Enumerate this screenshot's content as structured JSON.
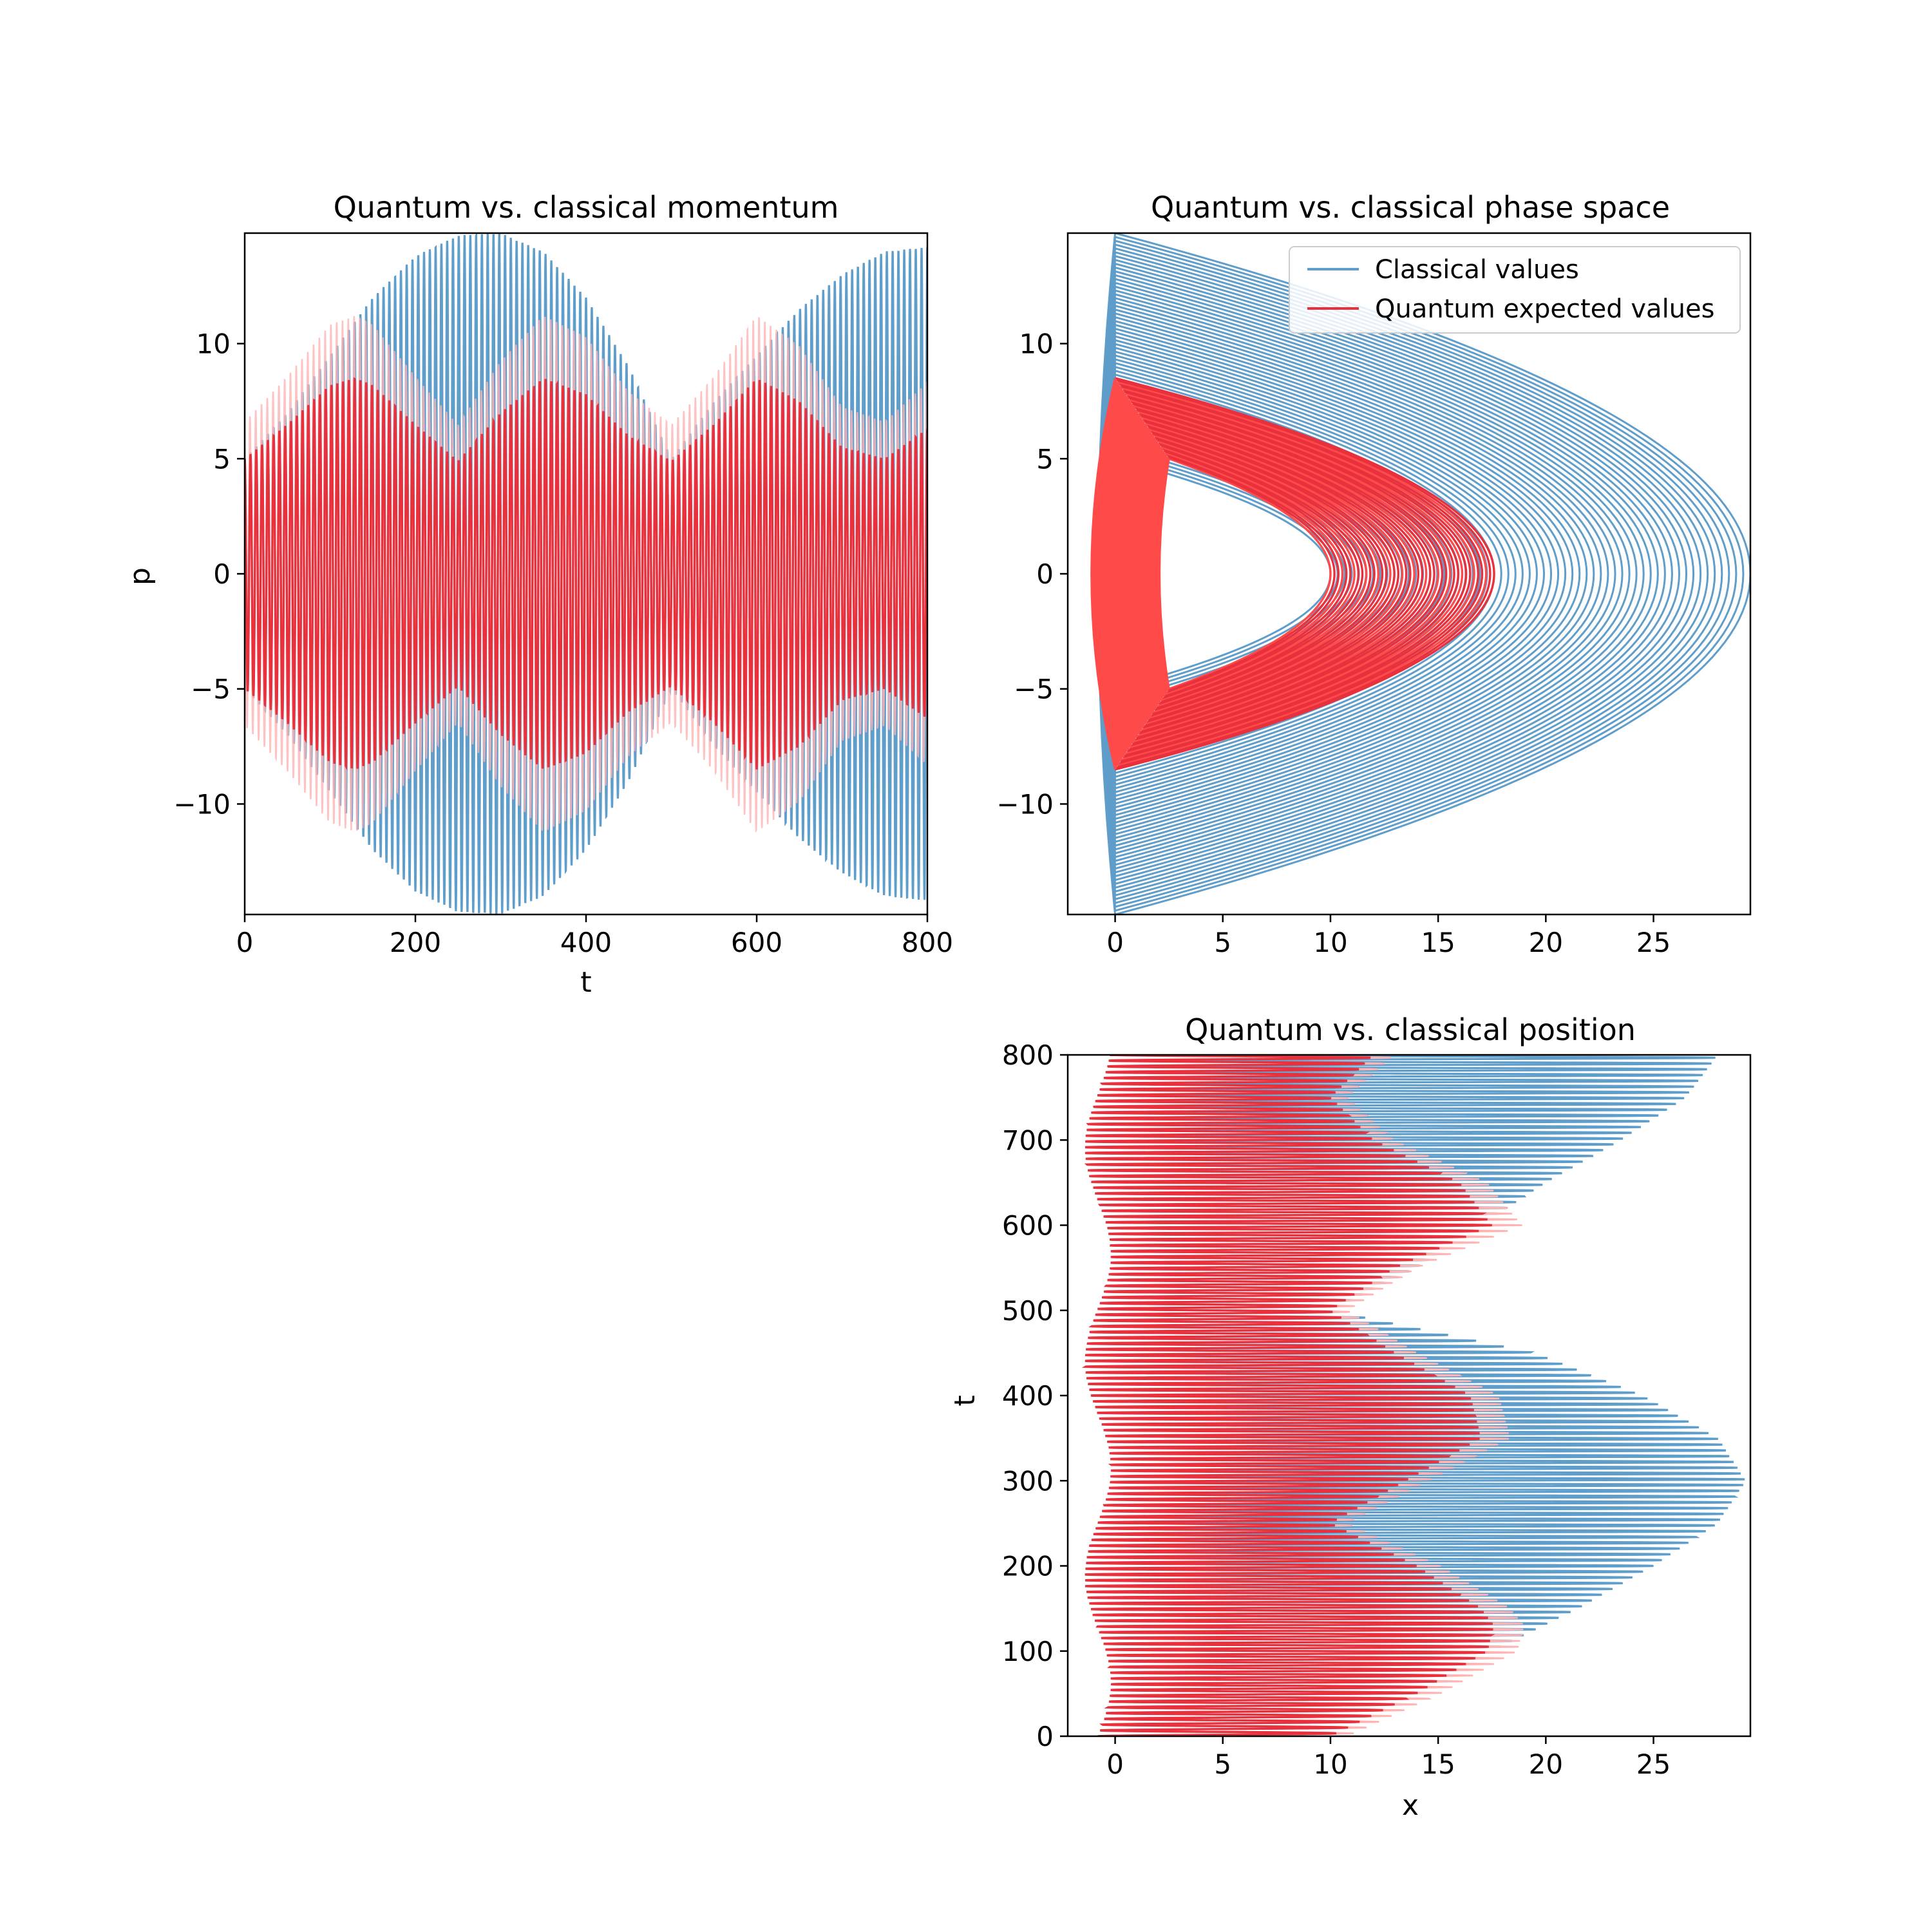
{
  "figure": {
    "background": "#ffffff"
  },
  "colors": {
    "classical": "#5f9dca",
    "quantum": "#e8313c",
    "quantum_faint": "#ffb3b3"
  },
  "chart_data": [
    {
      "id": "momentum",
      "type": "line",
      "title": "Quantum vs. classical momentum",
      "xlabel": "t",
      "ylabel": "p",
      "xlim": [
        0,
        800
      ],
      "ylim": [
        -14.8,
        14.8
      ],
      "xticks": [
        0,
        200,
        400,
        600,
        800
      ],
      "yticks": [
        -10,
        -5,
        0,
        5,
        10
      ],
      "xticklabels": [
        "0",
        "200",
        "400",
        "600",
        "800"
      ],
      "yticklabels": [
        "−10",
        "−5",
        "0",
        "5",
        "10"
      ],
      "grid": false,
      "series": [
        {
          "name": "Classical values",
          "color": "#5f9dca",
          "description": "dense oscillation, ~120 cycles over t in [0,800]; envelope amplitude",
          "envelope_t": [
            0,
            50,
            100,
            150,
            200,
            250,
            300,
            350,
            400,
            450,
            500,
            550,
            600,
            650,
            700,
            750,
            800
          ],
          "envelope_p": [
            5.0,
            7.0,
            9.5,
            12.0,
            13.8,
            14.7,
            14.8,
            14.0,
            12.0,
            9.0,
            5.0,
            7.5,
            9.5,
            11.5,
            13.0,
            14.0,
            14.2
          ]
        },
        {
          "name": "Quantum expected values",
          "color": "#e8313c",
          "description": "dense oscillation; envelope amplitude",
          "envelope_t": [
            0,
            50,
            100,
            130,
            150,
            200,
            250,
            300,
            350,
            400,
            450,
            500,
            550,
            600,
            650,
            700,
            750,
            800
          ],
          "envelope_p": [
            5.0,
            6.5,
            8.2,
            8.5,
            8.2,
            6.5,
            4.9,
            7.0,
            8.5,
            7.8,
            6.0,
            4.9,
            6.5,
            8.5,
            7.5,
            5.5,
            5.0,
            6.3
          ]
        }
      ]
    },
    {
      "id": "phase_space",
      "type": "line",
      "title": "Quantum vs. classical phase space",
      "xlabel": "",
      "ylabel": "",
      "xlim": [
        -2.2,
        29.5
      ],
      "ylim": [
        -14.8,
        14.8
      ],
      "xticks": [
        0,
        5,
        10,
        15,
        20,
        25
      ],
      "yticks": [
        -10,
        -5,
        0,
        5,
        10
      ],
      "xticklabels": [
        "0",
        "5",
        "10",
        "15",
        "20",
        "25"
      ],
      "yticklabels": [
        "−10",
        "−5",
        "0",
        "5",
        "10"
      ],
      "grid": false,
      "legend": {
        "position": "top-right",
        "entries": [
          "Classical values",
          "Quantum expected values"
        ]
      },
      "series": [
        {
          "name": "Classical values",
          "color": "#5f9dca",
          "description": "nested orbits p^2 ~ E - x shaped curves, turning points",
          "orbit_turning_x_range": [
            10,
            29.5
          ],
          "orbit_max_p_range": [
            5,
            14.8
          ]
        },
        {
          "name": "Quantum expected values",
          "color": "#e8313c",
          "orbit_turning_x_range": [
            10,
            17.6
          ],
          "orbit_max_p_range": [
            5,
            8.5
          ]
        }
      ]
    },
    {
      "id": "position",
      "type": "line",
      "title": "Quantum vs. classical position",
      "xlabel": "x",
      "ylabel": "t",
      "xlim": [
        -2.2,
        29.5
      ],
      "ylim": [
        0,
        800
      ],
      "xticks": [
        0,
        5,
        10,
        15,
        20,
        25
      ],
      "yticks": [
        0,
        100,
        200,
        300,
        400,
        500,
        600,
        700,
        800
      ],
      "xticklabels": [
        "0",
        "5",
        "10",
        "15",
        "20",
        "25"
      ],
      "yticklabels": [
        "0",
        "100",
        "200",
        "300",
        "400",
        "500",
        "600",
        "700",
        "800"
      ],
      "grid": false,
      "series": [
        {
          "name": "Classical values",
          "color": "#5f9dca",
          "envelope_t": [
            0,
            50,
            100,
            150,
            200,
            250,
            300,
            350,
            400,
            450,
            500,
            550,
            600,
            650,
            700,
            750,
            800
          ],
          "envelope_xmax": [
            10.0,
            14.0,
            17.5,
            21.5,
            25.0,
            28.0,
            29.3,
            28.0,
            24.5,
            19.5,
            10.0,
            14.0,
            17.0,
            20.0,
            23.5,
            26.5,
            28.0
          ]
        },
        {
          "name": "Quantum expected values",
          "color": "#e8313c",
          "envelope_t": [
            0,
            50,
            100,
            130,
            150,
            200,
            250,
            300,
            350,
            400,
            450,
            500,
            550,
            600,
            650,
            700,
            750,
            800
          ],
          "envelope_xmax": [
            10.0,
            14.0,
            17.3,
            17.6,
            17.0,
            14.0,
            10.0,
            13.5,
            17.0,
            16.5,
            13.0,
            10.0,
            13.0,
            17.5,
            16.0,
            12.0,
            10.0,
            12.0
          ]
        }
      ]
    }
  ]
}
